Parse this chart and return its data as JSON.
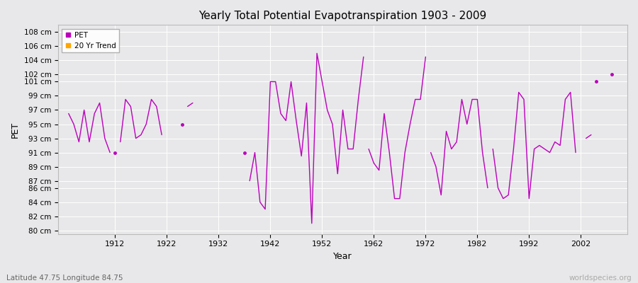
{
  "title": "Yearly Total Potential Evapotranspiration 1903 - 2009",
  "xlabel": "Year",
  "ylabel": "PET",
  "subtitle": "Latitude 47.75 Longitude 84.75",
  "watermark": "worldspecies.org",
  "ylim": [
    79.5,
    109
  ],
  "xlim": [
    1901,
    2011
  ],
  "ytick_labels": [
    "80 cm",
    "82 cm",
    "84 cm",
    "86 cm",
    "87 cm",
    "89 cm",
    "91 cm",
    "93 cm",
    "95 cm",
    "97 cm",
    "99 cm",
    "101 cm",
    "102 cm",
    "104 cm",
    "106 cm",
    "108 cm"
  ],
  "ytick_values": [
    80,
    82,
    84,
    86,
    87,
    89,
    91,
    93,
    95,
    97,
    99,
    101,
    102,
    104,
    106,
    108
  ],
  "xtick_values": [
    1912,
    1922,
    1932,
    1942,
    1952,
    1962,
    1972,
    1982,
    1992,
    2002
  ],
  "line_color": "#bb00bb",
  "bg_color": "#e8e8ea",
  "plot_bg_color": "#e8e8ea",
  "grid_color": "#ffffff",
  "segments": [
    {
      "years": [
        1903,
        1904,
        1905,
        1906,
        1907,
        1908,
        1909,
        1910,
        1911
      ],
      "values": [
        96.5,
        95.0,
        92.5,
        97.0,
        92.5,
        96.5,
        98.0,
        93.0,
        91.0
      ]
    },
    {
      "years": [
        1913,
        1914,
        1915,
        1916,
        1917,
        1918,
        1919,
        1920,
        1921
      ],
      "values": [
        92.5,
        98.5,
        97.5,
        93.0,
        93.5,
        95.0,
        98.5,
        97.5,
        93.5
      ]
    },
    {
      "years": [
        1926,
        1927
      ],
      "values": [
        97.5,
        98.0
      ]
    },
    {
      "years": [
        1938,
        1939,
        1940,
        1941,
        1942,
        1943,
        1944,
        1945,
        1946,
        1947,
        1948,
        1949,
        1950,
        1951,
        1952,
        1953,
        1954,
        1955,
        1956,
        1957,
        1958,
        1959,
        1960
      ],
      "values": [
        87.0,
        91.0,
        84.0,
        83.0,
        101.0,
        101.0,
        96.5,
        95.5,
        101.0,
        95.5,
        90.5,
        98.0,
        81.0,
        105.0,
        101.0,
        97.0,
        95.0,
        88.0,
        97.0,
        91.5,
        91.5,
        98.5,
        104.5
      ]
    },
    {
      "years": [
        1961,
        1962,
        1963,
        1964,
        1965,
        1966,
        1967,
        1968,
        1969,
        1970,
        1971,
        1972
      ],
      "values": [
        91.5,
        89.5,
        88.5,
        96.5,
        91.0,
        84.5,
        84.5,
        91.0,
        95.0,
        98.5,
        98.5,
        104.5
      ]
    },
    {
      "years": [
        1973,
        1974,
        1975,
        1976,
        1977,
        1978,
        1979,
        1980,
        1981,
        1982,
        1983,
        1984
      ],
      "values": [
        91.0,
        89.0,
        85.0,
        94.0,
        91.5,
        92.5,
        98.5,
        95.0,
        98.5,
        98.5,
        91.0,
        86.0
      ]
    },
    {
      "years": [
        1985,
        1986,
        1987,
        1988,
        1989,
        1990,
        1991,
        1992,
        1993,
        1994,
        1995,
        1996,
        1997,
        1998,
        1999,
        2000,
        2001
      ],
      "values": [
        91.5,
        86.0,
        84.5,
        85.0,
        91.5,
        99.5,
        98.5,
        84.5,
        91.5,
        92.0,
        91.5,
        91.0,
        92.5,
        92.0,
        98.5,
        99.5,
        91.0
      ]
    },
    {
      "years": [
        2003,
        2004
      ],
      "values": [
        93.0,
        93.5
      ]
    }
  ],
  "isolated_points": [
    {
      "year": 1912,
      "value": 91.0
    },
    {
      "year": 1925,
      "value": 95.0
    },
    {
      "year": 1937,
      "value": 91.0
    },
    {
      "year": 2008,
      "value": 102.0
    },
    {
      "year": 2005,
      "value": 101.0
    }
  ]
}
